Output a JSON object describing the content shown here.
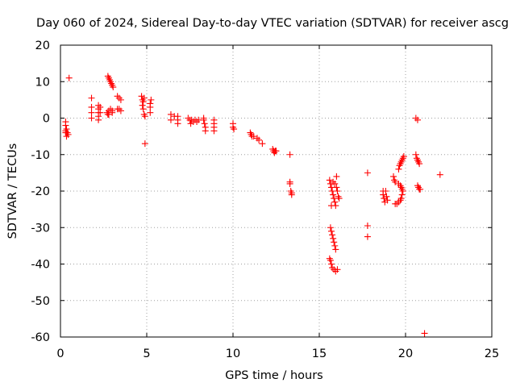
{
  "chart_data": {
    "type": "scatter",
    "title": "Day 060 of 2024, Sidereal Day-to-day VTEC variation (SDTVAR) for receiver ascg",
    "xlabel": "GPS time / hours",
    "ylabel": "SDTVAR / TECUs",
    "xlim": [
      0,
      25
    ],
    "ylim": [
      -60,
      20
    ],
    "xticks": [
      0,
      5,
      10,
      15,
      20,
      25
    ],
    "yticks": [
      -60,
      -50,
      -40,
      -30,
      -20,
      -10,
      0,
      10,
      20
    ],
    "grid": true,
    "marker": "+",
    "color": "#ff0000",
    "series": [
      {
        "name": "SDTVAR",
        "points": [
          [
            0.3,
            -1
          ],
          [
            0.3,
            -2
          ],
          [
            0.35,
            -3
          ],
          [
            0.3,
            -4
          ],
          [
            0.35,
            -5
          ],
          [
            0.4,
            -4
          ],
          [
            0.45,
            -4.5
          ],
          [
            0.3,
            -3.5
          ],
          [
            0.5,
            11
          ],
          [
            1.8,
            5.5
          ],
          [
            1.8,
            3
          ],
          [
            1.8,
            1.5
          ],
          [
            1.8,
            0
          ],
          [
            2.2,
            3.5
          ],
          [
            2.2,
            2.5
          ],
          [
            2.2,
            1.5
          ],
          [
            2.2,
            0.5
          ],
          [
            2.2,
            -0.5
          ],
          [
            2.3,
            3
          ],
          [
            2.3,
            1.5
          ],
          [
            2.7,
            1.5
          ],
          [
            2.8,
            1
          ],
          [
            2.8,
            2
          ],
          [
            2.9,
            2.5
          ],
          [
            3.0,
            2
          ],
          [
            3.0,
            1.5
          ],
          [
            2.75,
            1
          ],
          [
            2.75,
            11.5
          ],
          [
            2.8,
            11
          ],
          [
            2.85,
            10.5
          ],
          [
            2.9,
            10
          ],
          [
            2.95,
            9.5
          ],
          [
            3.0,
            9
          ],
          [
            3.05,
            8.5
          ],
          [
            3.3,
            2.5
          ],
          [
            3.4,
            2.5
          ],
          [
            3.3,
            6
          ],
          [
            3.4,
            5.5
          ],
          [
            3.5,
            5
          ],
          [
            3.5,
            2
          ],
          [
            4.7,
            6
          ],
          [
            4.75,
            5
          ],
          [
            4.8,
            4.5
          ],
          [
            4.85,
            5.5
          ],
          [
            4.75,
            3.5
          ],
          [
            4.8,
            2.5
          ],
          [
            4.85,
            1
          ],
          [
            4.9,
            0.5
          ],
          [
            4.9,
            -7
          ],
          [
            5.2,
            4
          ],
          [
            5.2,
            3
          ],
          [
            5.25,
            5
          ],
          [
            5.2,
            1.5
          ],
          [
            6.4,
            1
          ],
          [
            6.4,
            -0.5
          ],
          [
            6.6,
            0.5
          ],
          [
            6.8,
            0.5
          ],
          [
            6.8,
            -0.5
          ],
          [
            6.8,
            -1.5
          ],
          [
            7.4,
            0
          ],
          [
            7.5,
            -0.5
          ],
          [
            7.6,
            -0.5
          ],
          [
            7.7,
            -1
          ],
          [
            7.8,
            -0.5
          ],
          [
            7.9,
            -1
          ],
          [
            8.0,
            -0.5
          ],
          [
            7.55,
            -1.5
          ],
          [
            8.3,
            -0.5
          ],
          [
            8.35,
            -1.5
          ],
          [
            8.4,
            -2.5
          ],
          [
            8.4,
            -3.5
          ],
          [
            8.3,
            0
          ],
          [
            8.9,
            -0.5
          ],
          [
            8.9,
            -1.5
          ],
          [
            8.9,
            -2.5
          ],
          [
            8.9,
            -3.5
          ],
          [
            10.0,
            -1.5
          ],
          [
            10.0,
            -2.5
          ],
          [
            10.05,
            -3
          ],
          [
            11.0,
            -4
          ],
          [
            11.05,
            -4.5
          ],
          [
            11.1,
            -5
          ],
          [
            11.2,
            -5
          ],
          [
            11.4,
            -5.5
          ],
          [
            11.5,
            -6
          ],
          [
            11.7,
            -7
          ],
          [
            12.3,
            -8.5
          ],
          [
            12.35,
            -9
          ],
          [
            12.4,
            -9.5
          ],
          [
            12.45,
            -9
          ],
          [
            12.5,
            -9
          ],
          [
            13.3,
            -10
          ],
          [
            13.3,
            -17.5
          ],
          [
            13.3,
            -18
          ],
          [
            13.35,
            -20
          ],
          [
            13.4,
            -20.5
          ],
          [
            13.4,
            -21
          ],
          [
            15.6,
            -17
          ],
          [
            15.65,
            -18
          ],
          [
            15.7,
            -19
          ],
          [
            15.75,
            -20
          ],
          [
            15.8,
            -21
          ],
          [
            15.85,
            -22
          ],
          [
            15.9,
            -23
          ],
          [
            15.95,
            -24
          ],
          [
            15.7,
            -24
          ],
          [
            15.8,
            -17.5
          ],
          [
            15.9,
            -18
          ],
          [
            16.0,
            -19
          ],
          [
            16.05,
            -20
          ],
          [
            16.1,
            -21.5
          ],
          [
            16.15,
            -22
          ],
          [
            16.0,
            -16
          ],
          [
            15.65,
            -30
          ],
          [
            15.7,
            -31
          ],
          [
            15.75,
            -32
          ],
          [
            15.8,
            -33
          ],
          [
            15.85,
            -34
          ],
          [
            15.9,
            -35
          ],
          [
            15.95,
            -36
          ],
          [
            15.6,
            -38.5
          ],
          [
            15.65,
            -39
          ],
          [
            15.7,
            -40
          ],
          [
            15.75,
            -41
          ],
          [
            15.85,
            -41.5
          ],
          [
            15.95,
            -42
          ],
          [
            16.05,
            -41.5
          ],
          [
            17.8,
            -15
          ],
          [
            17.8,
            -29.5
          ],
          [
            17.8,
            -32.5
          ],
          [
            18.7,
            -20
          ],
          [
            18.7,
            -21
          ],
          [
            18.75,
            -22
          ],
          [
            18.8,
            -23
          ],
          [
            18.85,
            -20
          ],
          [
            18.9,
            -21.5
          ],
          [
            18.95,
            -22.5
          ],
          [
            19.3,
            -16
          ],
          [
            19.35,
            -17
          ],
          [
            19.4,
            -17.5
          ],
          [
            19.4,
            -23.5
          ],
          [
            19.5,
            -23.5
          ],
          [
            19.6,
            -23
          ],
          [
            19.7,
            -22.5
          ],
          [
            19.75,
            -22
          ],
          [
            19.8,
            -21
          ],
          [
            19.85,
            -20
          ],
          [
            19.6,
            -18
          ],
          [
            19.7,
            -18.5
          ],
          [
            19.75,
            -19
          ],
          [
            19.8,
            -19.5
          ],
          [
            19.6,
            -14
          ],
          [
            19.65,
            -13
          ],
          [
            19.7,
            -12.5
          ],
          [
            19.75,
            -12
          ],
          [
            19.8,
            -11.5
          ],
          [
            19.85,
            -11
          ],
          [
            19.9,
            -10.5
          ],
          [
            20.6,
            -10
          ],
          [
            20.65,
            -11
          ],
          [
            20.7,
            -11.5
          ],
          [
            20.75,
            -12
          ],
          [
            20.8,
            -12.5
          ],
          [
            20.6,
            0
          ],
          [
            20.7,
            -0.5
          ],
          [
            20.75,
            -19
          ],
          [
            20.8,
            -19.5
          ],
          [
            20.85,
            -19.5
          ],
          [
            20.7,
            -18.5
          ],
          [
            21.1,
            -59
          ],
          [
            22.0,
            -15.5
          ]
        ]
      }
    ]
  }
}
